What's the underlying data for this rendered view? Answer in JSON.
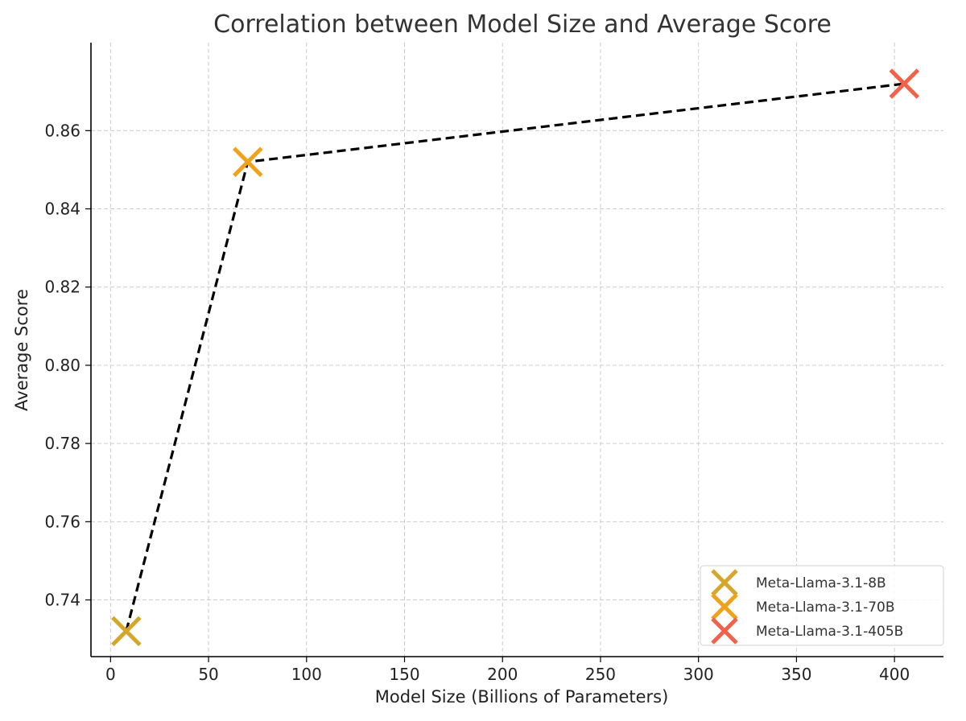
{
  "chart_data": {
    "type": "line",
    "title": "Correlation between Model Size and Average Score",
    "xlabel": "Model Size (Billions of Parameters)",
    "ylabel": "Average Score",
    "xlim": [
      -10,
      425
    ],
    "ylim": [
      0.7255,
      0.8825
    ],
    "xticks": [
      0,
      50,
      100,
      150,
      200,
      250,
      300,
      350,
      400
    ],
    "xtick_labels": [
      "0",
      "50",
      "100",
      "150",
      "200",
      "250",
      "300",
      "350",
      "400"
    ],
    "yticks": [
      0.74,
      0.76,
      0.78,
      0.8,
      0.82,
      0.84,
      0.86
    ],
    "ytick_labels": [
      "0.74",
      "0.76",
      "0.78",
      "0.80",
      "0.82",
      "0.84",
      "0.86"
    ],
    "grid": true,
    "line_style": "dashed",
    "line_color": "#000000",
    "legend_position": "bottom-right",
    "points": [
      {
        "name": "Meta-Llama-3.1-8B",
        "x": 8,
        "y": 0.732,
        "color": "#D4A62A",
        "marker": "x"
      },
      {
        "name": "Meta-Llama-3.1-70B",
        "x": 70,
        "y": 0.852,
        "color": "#F0A21A",
        "marker": "x"
      },
      {
        "name": "Meta-Llama-3.1-405B",
        "x": 405,
        "y": 0.872,
        "color": "#F0634A",
        "marker": "x"
      }
    ]
  }
}
